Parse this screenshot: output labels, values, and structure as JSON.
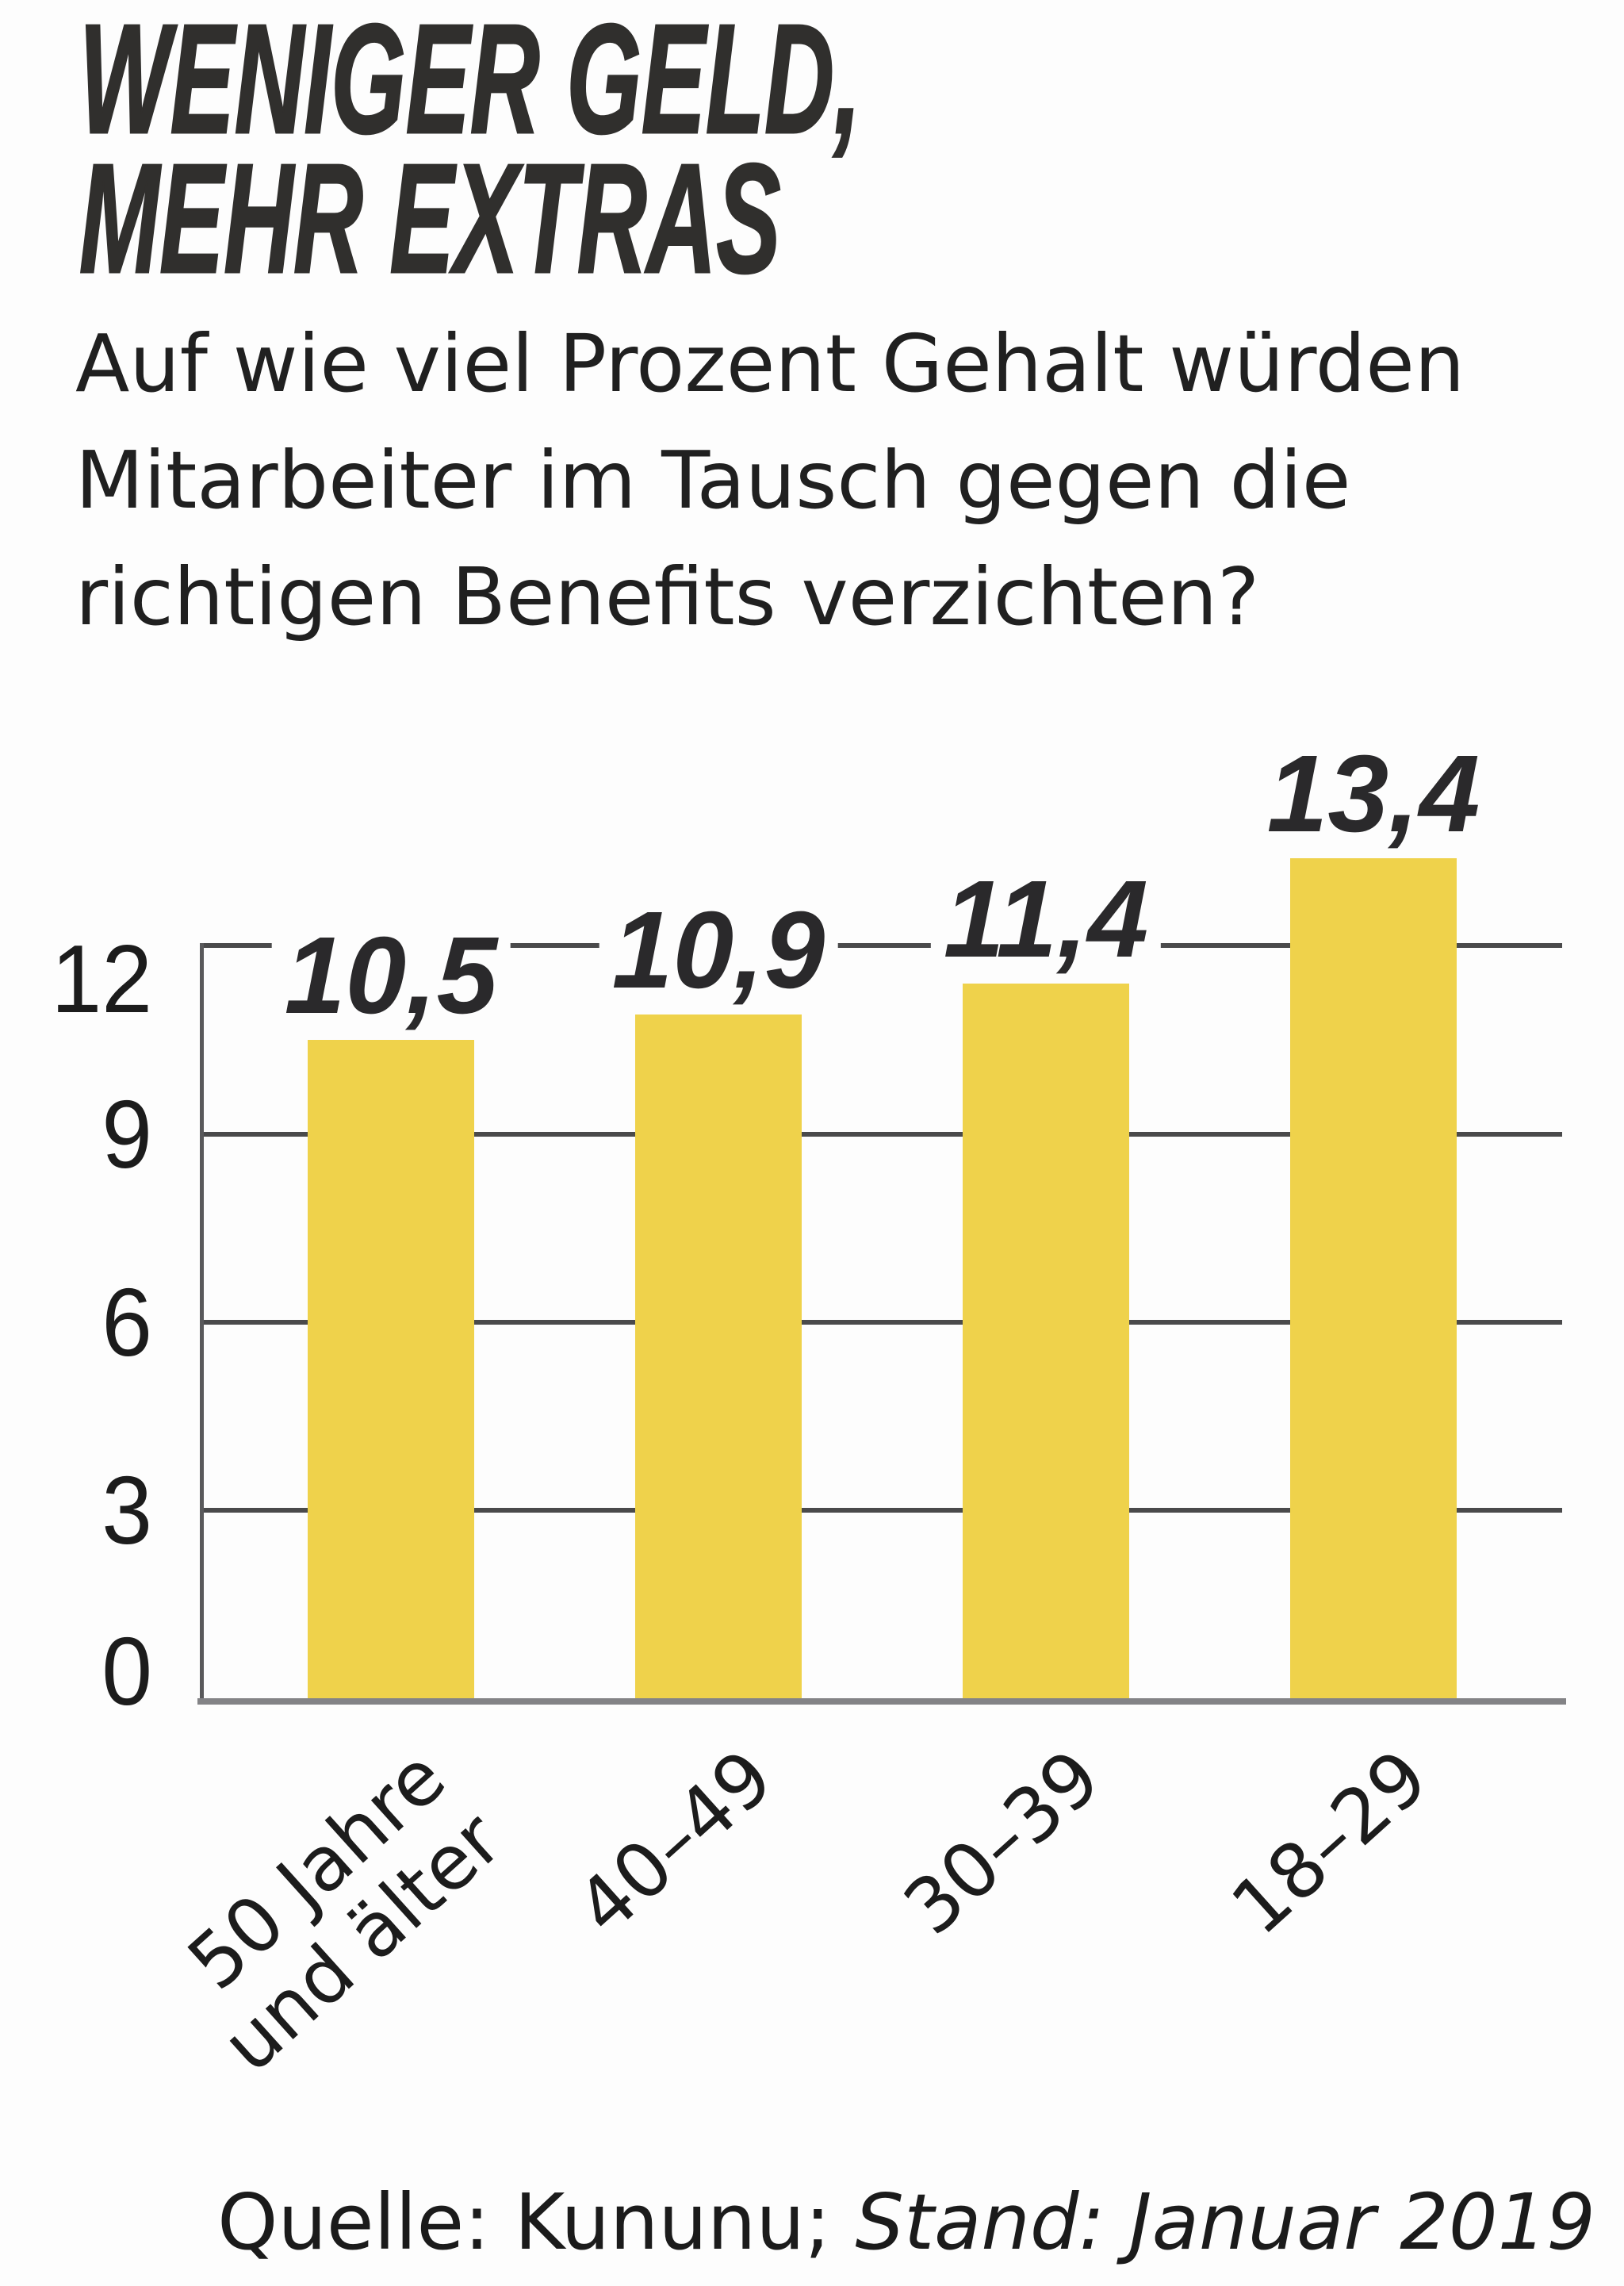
{
  "title": {
    "line1": "WENIGER GELD,",
    "line2": "MEHR EXTRAS"
  },
  "subtitle": {
    "lines": [
      "Auf wie viel Prozent Gehalt würden",
      "Mitarbeiter im Tausch gegen die",
      "richtigen Benefits verzichten?"
    ]
  },
  "source": {
    "normal": "Quelle: Kununu; ",
    "italic": "Stand: Januar 2019"
  },
  "chart_data": {
    "type": "bar",
    "categories": [
      "50 Jahre und älter",
      "40–49",
      "30–39",
      "18–29"
    ],
    "categories_lines": [
      [
        "50 Jahre",
        "und älter"
      ],
      [
        "40–49"
      ],
      [
        "30–39"
      ],
      [
        "18–29"
      ]
    ],
    "values": [
      10.5,
      10.9,
      11.4,
      13.4
    ],
    "value_labels": [
      "10,5",
      "10,9",
      "11,4",
      "13,4"
    ],
    "yticks": [
      0,
      3,
      6,
      9,
      12
    ],
    "ylim": [
      0,
      12
    ],
    "grid": "horizontal",
    "legend": "none",
    "bar_color": "#efd24b"
  }
}
